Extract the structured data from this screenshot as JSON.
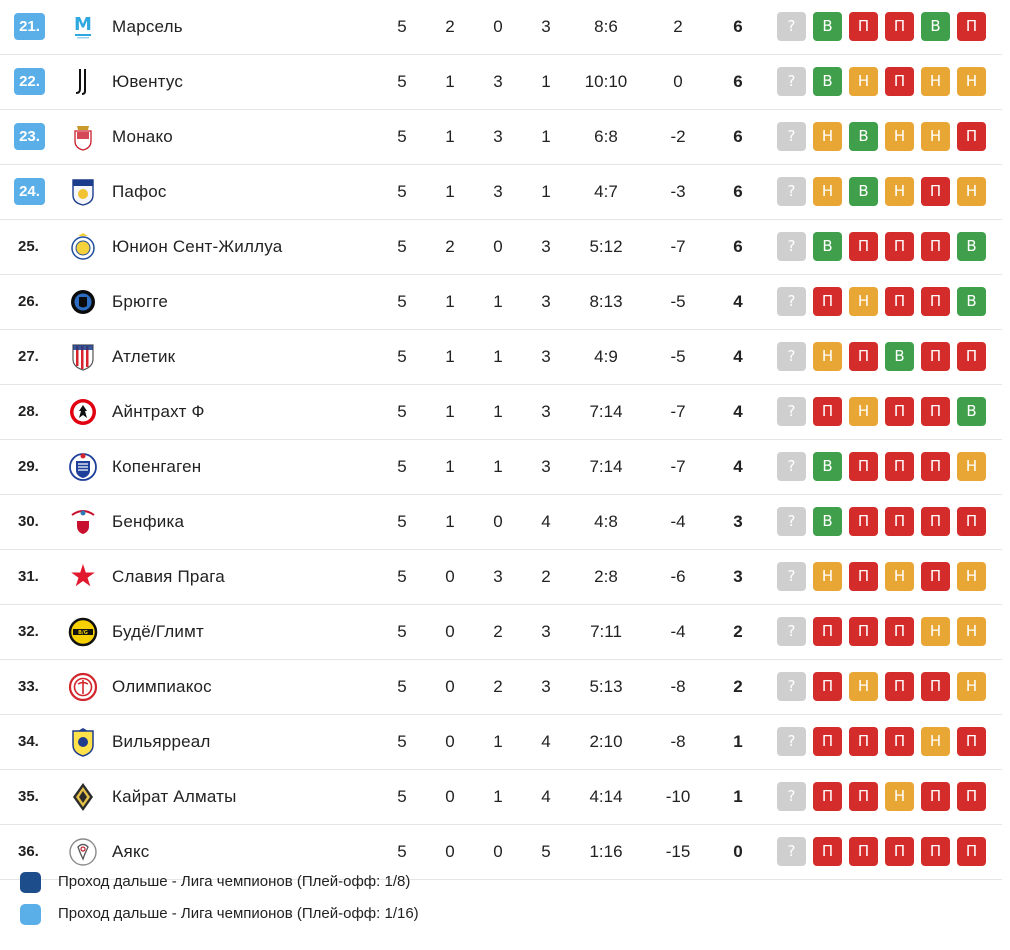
{
  "colors": {
    "highlight_rank": "#5aafe8",
    "win": "#3f9f4a",
    "loss": "#d42b2b",
    "draw": "#e8a634",
    "unknown": "#cfcfcf",
    "legend_dark": "#1e4d8c",
    "legend_light": "#5aafe8"
  },
  "rows": [
    {
      "rank": "21.",
      "team": "Марсель",
      "logo": "marseille-logo",
      "hl": true,
      "p": "5",
      "w": "2",
      "d": "0",
      "l": "3",
      "goals": "8:6",
      "diff": "2",
      "pts": "6",
      "form": [
        "?",
        "В",
        "П",
        "П",
        "В",
        "П"
      ]
    },
    {
      "rank": "22.",
      "team": "Ювентус",
      "logo": "juventus-logo",
      "hl": true,
      "p": "5",
      "w": "1",
      "d": "3",
      "l": "1",
      "goals": "10:10",
      "diff": "0",
      "pts": "6",
      "form": [
        "?",
        "В",
        "Н",
        "П",
        "Н",
        "Н"
      ]
    },
    {
      "rank": "23.",
      "team": "Монако",
      "logo": "monaco-logo",
      "hl": true,
      "p": "5",
      "w": "1",
      "d": "3",
      "l": "1",
      "goals": "6:8",
      "diff": "-2",
      "pts": "6",
      "form": [
        "?",
        "Н",
        "В",
        "Н",
        "Н",
        "П"
      ]
    },
    {
      "rank": "24.",
      "team": "Пафос",
      "logo": "pafos-logo",
      "hl": true,
      "p": "5",
      "w": "1",
      "d": "3",
      "l": "1",
      "goals": "4:7",
      "diff": "-3",
      "pts": "6",
      "form": [
        "?",
        "Н",
        "В",
        "Н",
        "П",
        "Н"
      ]
    },
    {
      "rank": "25.",
      "team": "Юнион Сент-Жиллуа",
      "logo": "union-sg-logo",
      "hl": false,
      "p": "5",
      "w": "2",
      "d": "0",
      "l": "3",
      "goals": "5:12",
      "diff": "-7",
      "pts": "6",
      "form": [
        "?",
        "В",
        "П",
        "П",
        "П",
        "В"
      ]
    },
    {
      "rank": "26.",
      "team": "Брюгге",
      "logo": "brugge-logo",
      "hl": false,
      "p": "5",
      "w": "1",
      "d": "1",
      "l": "3",
      "goals": "8:13",
      "diff": "-5",
      "pts": "4",
      "form": [
        "?",
        "П",
        "Н",
        "П",
        "П",
        "В"
      ]
    },
    {
      "rank": "27.",
      "team": "Атлетик",
      "logo": "athletic-logo",
      "hl": false,
      "p": "5",
      "w": "1",
      "d": "1",
      "l": "3",
      "goals": "4:9",
      "diff": "-5",
      "pts": "4",
      "form": [
        "?",
        "Н",
        "П",
        "В",
        "П",
        "П"
      ]
    },
    {
      "rank": "28.",
      "team": "Айнтрахт Ф",
      "logo": "eintracht-logo",
      "hl": false,
      "p": "5",
      "w": "1",
      "d": "1",
      "l": "3",
      "goals": "7:14",
      "diff": "-7",
      "pts": "4",
      "form": [
        "?",
        "П",
        "Н",
        "П",
        "П",
        "В"
      ]
    },
    {
      "rank": "29.",
      "team": "Копенгаген",
      "logo": "copenhagen-logo",
      "hl": false,
      "p": "5",
      "w": "1",
      "d": "1",
      "l": "3",
      "goals": "7:14",
      "diff": "-7",
      "pts": "4",
      "form": [
        "?",
        "В",
        "П",
        "П",
        "П",
        "Н"
      ]
    },
    {
      "rank": "30.",
      "team": "Бенфика",
      "logo": "benfica-logo",
      "hl": false,
      "p": "5",
      "w": "1",
      "d": "0",
      "l": "4",
      "goals": "4:8",
      "diff": "-4",
      "pts": "3",
      "form": [
        "?",
        "В",
        "П",
        "П",
        "П",
        "П"
      ]
    },
    {
      "rank": "31.",
      "team": "Славия Прага",
      "logo": "slavia-logo",
      "hl": false,
      "p": "5",
      "w": "0",
      "d": "3",
      "l": "2",
      "goals": "2:8",
      "diff": "-6",
      "pts": "3",
      "form": [
        "?",
        "Н",
        "П",
        "Н",
        "П",
        "Н"
      ]
    },
    {
      "rank": "32.",
      "team": "Будё/Глимт",
      "logo": "bodo-glimt-logo",
      "hl": false,
      "p": "5",
      "w": "0",
      "d": "2",
      "l": "3",
      "goals": "7:11",
      "diff": "-4",
      "pts": "2",
      "form": [
        "?",
        "П",
        "П",
        "П",
        "Н",
        "Н"
      ]
    },
    {
      "rank": "33.",
      "team": "Олимпиакос",
      "logo": "olympiacos-logo",
      "hl": false,
      "p": "5",
      "w": "0",
      "d": "2",
      "l": "3",
      "goals": "5:13",
      "diff": "-8",
      "pts": "2",
      "form": [
        "?",
        "П",
        "Н",
        "П",
        "П",
        "Н"
      ]
    },
    {
      "rank": "34.",
      "team": "Вильярреал",
      "logo": "villarreal-logo",
      "hl": false,
      "p": "5",
      "w": "0",
      "d": "1",
      "l": "4",
      "goals": "2:10",
      "diff": "-8",
      "pts": "1",
      "form": [
        "?",
        "П",
        "П",
        "П",
        "Н",
        "П"
      ]
    },
    {
      "rank": "35.",
      "team": "Кайрат Алматы",
      "logo": "kairat-logo",
      "hl": false,
      "p": "5",
      "w": "0",
      "d": "1",
      "l": "4",
      "goals": "4:14",
      "diff": "-10",
      "pts": "1",
      "form": [
        "?",
        "П",
        "П",
        "Н",
        "П",
        "П"
      ]
    },
    {
      "rank": "36.",
      "team": "Аякс",
      "logo": "ajax-logo",
      "hl": false,
      "p": "5",
      "w": "0",
      "d": "0",
      "l": "5",
      "goals": "1:16",
      "diff": "-15",
      "pts": "0",
      "form": [
        "?",
        "П",
        "П",
        "П",
        "П",
        "П"
      ]
    }
  ],
  "legend": [
    {
      "color": "#1e4d8c",
      "text": "Проход дальше - Лига чемпионов (Плей-офф: 1/8)"
    },
    {
      "color": "#5aafe8",
      "text": "Проход дальше - Лига чемпионов (Плей-офф: 1/16)"
    }
  ]
}
